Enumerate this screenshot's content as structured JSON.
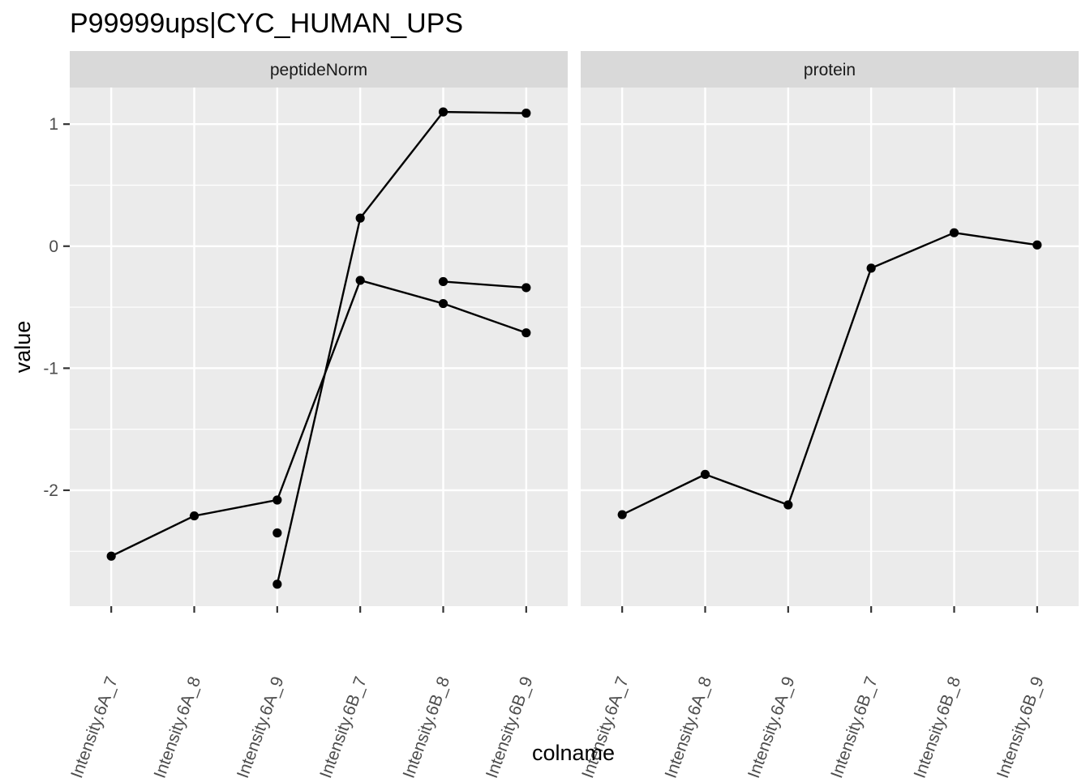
{
  "chart_data": {
    "type": "line",
    "title": "P99999ups|CYC_HUMAN_UPS",
    "xlabel": "colname",
    "ylabel": "value",
    "categories": [
      "Intensity.6A_7",
      "Intensity.6A_8",
      "Intensity.6A_9",
      "Intensity.6B_7",
      "Intensity.6B_8",
      "Intensity.6B_9"
    ],
    "ylim": [
      -2.95,
      1.3
    ],
    "yticks": [
      1,
      0,
      -1,
      -2
    ],
    "ytick_labels": [
      "1",
      "0",
      "-1",
      "-2"
    ],
    "grid": true,
    "facets": [
      {
        "label": "peptideNorm",
        "series": [
          {
            "values": [
              -2.54,
              -2.21,
              -2.08,
              -0.28,
              -0.47,
              -0.71
            ]
          },
          {
            "values": [
              null,
              null,
              -2.77,
              0.23,
              1.1,
              1.09
            ]
          },
          {
            "values": [
              null,
              null,
              -2.35,
              null,
              -0.29,
              -0.34
            ]
          }
        ]
      },
      {
        "label": "protein",
        "series": [
          {
            "values": [
              -2.2,
              -1.87,
              -2.12,
              -0.18,
              0.11,
              0.01
            ]
          }
        ]
      }
    ]
  }
}
